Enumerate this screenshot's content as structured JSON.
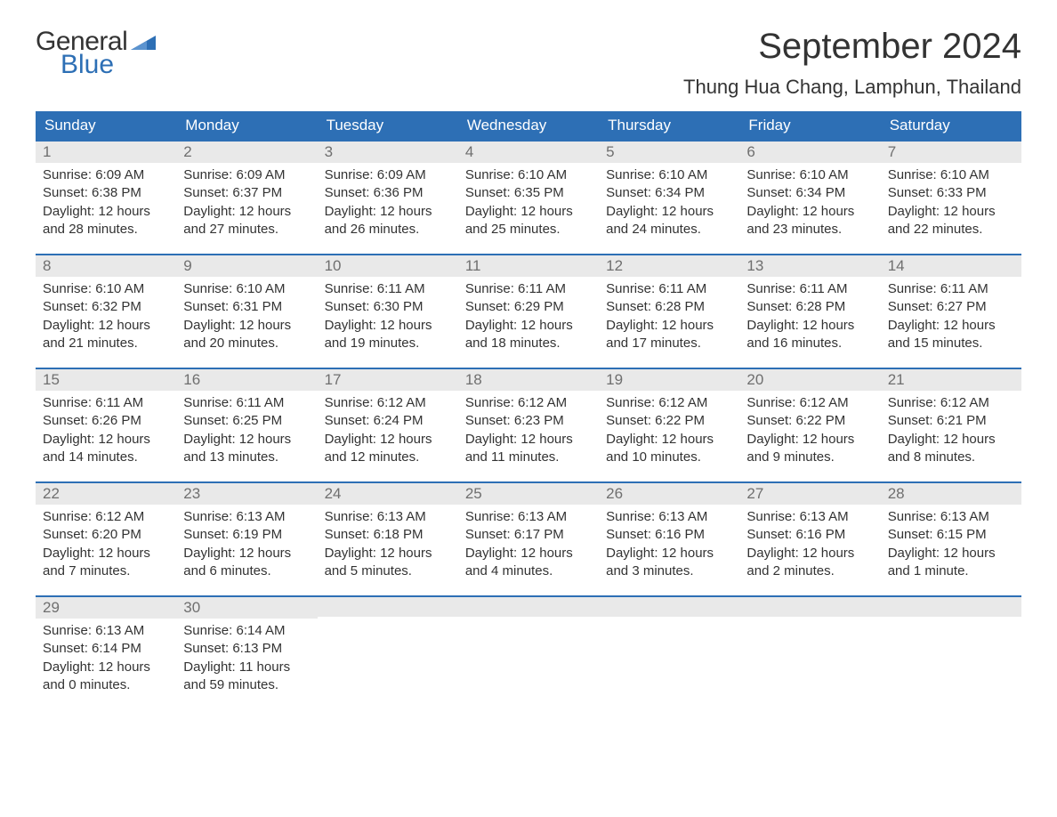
{
  "logo": {
    "general": "General",
    "blue": "Blue"
  },
  "title": "September 2024",
  "location": "Thung Hua Chang, Lamphun, Thailand",
  "colors": {
    "header_bg": "#2d6fb5",
    "header_text": "#ffffff",
    "dayhead_bg": "#e9e9e9",
    "dayhead_border": "#2d6fb5",
    "daynum_text": "#6f6f6f",
    "body_text": "#333333",
    "page_bg": "#ffffff"
  },
  "weekdays": [
    "Sunday",
    "Monday",
    "Tuesday",
    "Wednesday",
    "Thursday",
    "Friday",
    "Saturday"
  ],
  "rows": [
    [
      {
        "n": "1",
        "sr": "Sunrise: 6:09 AM",
        "ss": "Sunset: 6:38 PM",
        "d1": "Daylight: 12 hours",
        "d2": "and 28 minutes."
      },
      {
        "n": "2",
        "sr": "Sunrise: 6:09 AM",
        "ss": "Sunset: 6:37 PM",
        "d1": "Daylight: 12 hours",
        "d2": "and 27 minutes."
      },
      {
        "n": "3",
        "sr": "Sunrise: 6:09 AM",
        "ss": "Sunset: 6:36 PM",
        "d1": "Daylight: 12 hours",
        "d2": "and 26 minutes."
      },
      {
        "n": "4",
        "sr": "Sunrise: 6:10 AM",
        "ss": "Sunset: 6:35 PM",
        "d1": "Daylight: 12 hours",
        "d2": "and 25 minutes."
      },
      {
        "n": "5",
        "sr": "Sunrise: 6:10 AM",
        "ss": "Sunset: 6:34 PM",
        "d1": "Daylight: 12 hours",
        "d2": "and 24 minutes."
      },
      {
        "n": "6",
        "sr": "Sunrise: 6:10 AM",
        "ss": "Sunset: 6:34 PM",
        "d1": "Daylight: 12 hours",
        "d2": "and 23 minutes."
      },
      {
        "n": "7",
        "sr": "Sunrise: 6:10 AM",
        "ss": "Sunset: 6:33 PM",
        "d1": "Daylight: 12 hours",
        "d2": "and 22 minutes."
      }
    ],
    [
      {
        "n": "8",
        "sr": "Sunrise: 6:10 AM",
        "ss": "Sunset: 6:32 PM",
        "d1": "Daylight: 12 hours",
        "d2": "and 21 minutes."
      },
      {
        "n": "9",
        "sr": "Sunrise: 6:10 AM",
        "ss": "Sunset: 6:31 PM",
        "d1": "Daylight: 12 hours",
        "d2": "and 20 minutes."
      },
      {
        "n": "10",
        "sr": "Sunrise: 6:11 AM",
        "ss": "Sunset: 6:30 PM",
        "d1": "Daylight: 12 hours",
        "d2": "and 19 minutes."
      },
      {
        "n": "11",
        "sr": "Sunrise: 6:11 AM",
        "ss": "Sunset: 6:29 PM",
        "d1": "Daylight: 12 hours",
        "d2": "and 18 minutes."
      },
      {
        "n": "12",
        "sr": "Sunrise: 6:11 AM",
        "ss": "Sunset: 6:28 PM",
        "d1": "Daylight: 12 hours",
        "d2": "and 17 minutes."
      },
      {
        "n": "13",
        "sr": "Sunrise: 6:11 AM",
        "ss": "Sunset: 6:28 PM",
        "d1": "Daylight: 12 hours",
        "d2": "and 16 minutes."
      },
      {
        "n": "14",
        "sr": "Sunrise: 6:11 AM",
        "ss": "Sunset: 6:27 PM",
        "d1": "Daylight: 12 hours",
        "d2": "and 15 minutes."
      }
    ],
    [
      {
        "n": "15",
        "sr": "Sunrise: 6:11 AM",
        "ss": "Sunset: 6:26 PM",
        "d1": "Daylight: 12 hours",
        "d2": "and 14 minutes."
      },
      {
        "n": "16",
        "sr": "Sunrise: 6:11 AM",
        "ss": "Sunset: 6:25 PM",
        "d1": "Daylight: 12 hours",
        "d2": "and 13 minutes."
      },
      {
        "n": "17",
        "sr": "Sunrise: 6:12 AM",
        "ss": "Sunset: 6:24 PM",
        "d1": "Daylight: 12 hours",
        "d2": "and 12 minutes."
      },
      {
        "n": "18",
        "sr": "Sunrise: 6:12 AM",
        "ss": "Sunset: 6:23 PM",
        "d1": "Daylight: 12 hours",
        "d2": "and 11 minutes."
      },
      {
        "n": "19",
        "sr": "Sunrise: 6:12 AM",
        "ss": "Sunset: 6:22 PM",
        "d1": "Daylight: 12 hours",
        "d2": "and 10 minutes."
      },
      {
        "n": "20",
        "sr": "Sunrise: 6:12 AM",
        "ss": "Sunset: 6:22 PM",
        "d1": "Daylight: 12 hours",
        "d2": "and 9 minutes."
      },
      {
        "n": "21",
        "sr": "Sunrise: 6:12 AM",
        "ss": "Sunset: 6:21 PM",
        "d1": "Daylight: 12 hours",
        "d2": "and 8 minutes."
      }
    ],
    [
      {
        "n": "22",
        "sr": "Sunrise: 6:12 AM",
        "ss": "Sunset: 6:20 PM",
        "d1": "Daylight: 12 hours",
        "d2": "and 7 minutes."
      },
      {
        "n": "23",
        "sr": "Sunrise: 6:13 AM",
        "ss": "Sunset: 6:19 PM",
        "d1": "Daylight: 12 hours",
        "d2": "and 6 minutes."
      },
      {
        "n": "24",
        "sr": "Sunrise: 6:13 AM",
        "ss": "Sunset: 6:18 PM",
        "d1": "Daylight: 12 hours",
        "d2": "and 5 minutes."
      },
      {
        "n": "25",
        "sr": "Sunrise: 6:13 AM",
        "ss": "Sunset: 6:17 PM",
        "d1": "Daylight: 12 hours",
        "d2": "and 4 minutes."
      },
      {
        "n": "26",
        "sr": "Sunrise: 6:13 AM",
        "ss": "Sunset: 6:16 PM",
        "d1": "Daylight: 12 hours",
        "d2": "and 3 minutes."
      },
      {
        "n": "27",
        "sr": "Sunrise: 6:13 AM",
        "ss": "Sunset: 6:16 PM",
        "d1": "Daylight: 12 hours",
        "d2": "and 2 minutes."
      },
      {
        "n": "28",
        "sr": "Sunrise: 6:13 AM",
        "ss": "Sunset: 6:15 PM",
        "d1": "Daylight: 12 hours",
        "d2": "and 1 minute."
      }
    ],
    [
      {
        "n": "29",
        "sr": "Sunrise: 6:13 AM",
        "ss": "Sunset: 6:14 PM",
        "d1": "Daylight: 12 hours",
        "d2": "and 0 minutes."
      },
      {
        "n": "30",
        "sr": "Sunrise: 6:14 AM",
        "ss": "Sunset: 6:13 PM",
        "d1": "Daylight: 11 hours",
        "d2": "and 59 minutes."
      },
      null,
      null,
      null,
      null,
      null
    ]
  ]
}
